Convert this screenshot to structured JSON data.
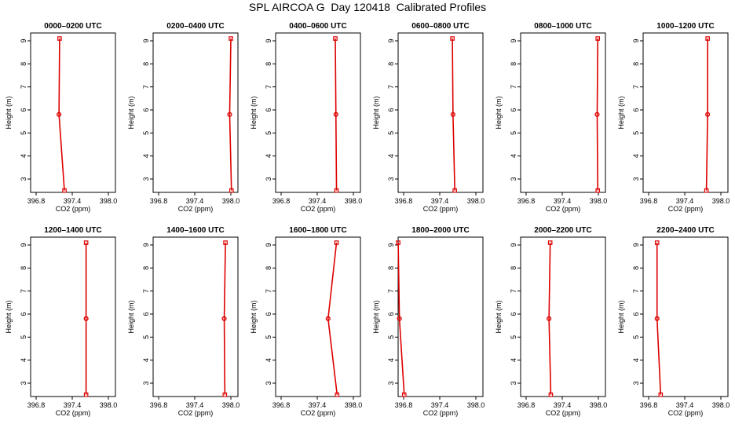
{
  "title": "SPL AIRCOA G  Day 120418  Calibrated Profiles",
  "chart_data": [
    {
      "type": "line",
      "title": "0000–0200 UTC",
      "xlabel": "CO2 (ppm)",
      "ylabel": "Height (m)",
      "x_ticks": [
        "396.8",
        "397.4",
        "398.0"
      ],
      "y_ticks": [
        "3",
        "4",
        "5",
        "6",
        "7",
        "8",
        "9"
      ],
      "xlim": [
        396.6,
        398.1
      ],
      "ylim": [
        2.3,
        9.3
      ],
      "grid": false,
      "heights": [
        2.5,
        5.8,
        9.1
      ],
      "co2": [
        397.27,
        397.18,
        397.19
      ]
    },
    {
      "type": "line",
      "title": "0200–0400 UTC",
      "xlabel": "CO2 (ppm)",
      "ylabel": "Height (m)",
      "x_ticks": [
        "396.8",
        "397.4",
        "398.0"
      ],
      "y_ticks": [
        "3",
        "4",
        "5",
        "6",
        "7",
        "8",
        "9"
      ],
      "xlim": [
        396.6,
        398.1
      ],
      "ylim": [
        2.3,
        9.3
      ],
      "grid": false,
      "heights": [
        2.5,
        5.8,
        9.1
      ],
      "co2": [
        398.01,
        397.98,
        398.0
      ]
    },
    {
      "type": "line",
      "title": "0400–0600 UTC",
      "xlabel": "CO2 (ppm)",
      "ylabel": "Height (m)",
      "x_ticks": [
        "396.8",
        "397.4",
        "398.0"
      ],
      "y_ticks": [
        "3",
        "4",
        "5",
        "6",
        "7",
        "8",
        "9"
      ],
      "xlim": [
        396.6,
        398.1
      ],
      "ylim": [
        2.3,
        9.3
      ],
      "grid": false,
      "heights": [
        2.5,
        5.8,
        9.1
      ],
      "co2": [
        397.72,
        397.71,
        397.7
      ]
    },
    {
      "type": "line",
      "title": "0600–0800 UTC",
      "xlabel": "CO2 (ppm)",
      "ylabel": "Height (m)",
      "x_ticks": [
        "396.8",
        "397.4",
        "398.0"
      ],
      "y_ticks": [
        "3",
        "4",
        "5",
        "6",
        "7",
        "8",
        "9"
      ],
      "xlim": [
        396.6,
        398.1
      ],
      "ylim": [
        2.3,
        9.3
      ],
      "grid": false,
      "heights": [
        2.5,
        5.8,
        9.1
      ],
      "co2": [
        397.65,
        397.62,
        397.61
      ]
    },
    {
      "type": "line",
      "title": "0800–1000 UTC",
      "xlabel": "CO2 (ppm)",
      "ylabel": "Height (m)",
      "x_ticks": [
        "396.8",
        "397.4",
        "398.0"
      ],
      "y_ticks": [
        "3",
        "4",
        "5",
        "6",
        "7",
        "8",
        "9"
      ],
      "xlim": [
        396.6,
        398.1
      ],
      "ylim": [
        2.3,
        9.3
      ],
      "grid": false,
      "heights": [
        2.5,
        5.8,
        9.1
      ],
      "co2": [
        397.99,
        397.98,
        397.99
      ]
    },
    {
      "type": "line",
      "title": "1000–1200 UTC",
      "xlabel": "CO2 (ppm)",
      "ylabel": "Height (m)",
      "x_ticks": [
        "396.8",
        "397.4",
        "398.0"
      ],
      "y_ticks": [
        "3",
        "4",
        "5",
        "6",
        "7",
        "8",
        "9"
      ],
      "xlim": [
        396.6,
        398.1
      ],
      "ylim": [
        2.3,
        9.3
      ],
      "grid": false,
      "heights": [
        2.5,
        5.8,
        9.1
      ],
      "co2": [
        397.76,
        397.78,
        397.78
      ]
    },
    {
      "type": "line",
      "title": "1200–1400 UTC",
      "xlabel": "CO2 (ppm)",
      "ylabel": "Height (m)",
      "x_ticks": [
        "396.8",
        "397.4",
        "398.0"
      ],
      "y_ticks": [
        "3",
        "4",
        "5",
        "6",
        "7",
        "8",
        "9"
      ],
      "xlim": [
        396.6,
        398.1
      ],
      "ylim": [
        2.3,
        9.3
      ],
      "grid": false,
      "heights": [
        2.5,
        5.8,
        9.1
      ],
      "co2": [
        397.63,
        397.63,
        397.63
      ]
    },
    {
      "type": "line",
      "title": "1400–1600 UTC",
      "xlabel": "CO2 (ppm)",
      "ylabel": "Height (m)",
      "x_ticks": [
        "396.8",
        "397.4",
        "398.0"
      ],
      "y_ticks": [
        "3",
        "4",
        "5",
        "6",
        "7",
        "8",
        "9"
      ],
      "xlim": [
        396.6,
        398.1
      ],
      "ylim": [
        2.3,
        9.3
      ],
      "grid": false,
      "heights": [
        2.5,
        5.8,
        9.1
      ],
      "co2": [
        397.9,
        397.89,
        397.91
      ]
    },
    {
      "type": "line",
      "title": "1600–1800 UTC",
      "xlabel": "CO2 (ppm)",
      "ylabel": "Height (m)",
      "x_ticks": [
        "396.8",
        "397.4",
        "398.0"
      ],
      "y_ticks": [
        "3",
        "4",
        "5",
        "6",
        "7",
        "8",
        "9"
      ],
      "xlim": [
        396.6,
        398.1
      ],
      "ylim": [
        2.3,
        9.3
      ],
      "grid": false,
      "heights": [
        2.5,
        5.8,
        9.1
      ],
      "co2": [
        397.73,
        397.58,
        397.72
      ]
    },
    {
      "type": "line",
      "title": "1800–2000 UTC",
      "xlabel": "CO2 (ppm)",
      "ylabel": "Height (m)",
      "x_ticks": [
        "396.8",
        "397.4",
        "398.0"
      ],
      "y_ticks": [
        "3",
        "4",
        "5",
        "6",
        "7",
        "8",
        "9"
      ],
      "xlim": [
        396.6,
        398.1
      ],
      "ylim": [
        2.3,
        9.3
      ],
      "grid": false,
      "heights": [
        2.5,
        5.8,
        9.1
      ],
      "co2": [
        396.81,
        396.73,
        396.71
      ]
    },
    {
      "type": "line",
      "title": "2000–2200 UTC",
      "xlabel": "CO2 (ppm)",
      "ylabel": "Height (m)",
      "x_ticks": [
        "396.8",
        "397.4",
        "398.0"
      ],
      "y_ticks": [
        "3",
        "4",
        "5",
        "6",
        "7",
        "8",
        "9"
      ],
      "xlim": [
        396.6,
        398.1
      ],
      "ylim": [
        2.3,
        9.3
      ],
      "grid": false,
      "heights": [
        2.5,
        5.8,
        9.1
      ],
      "co2": [
        397.21,
        397.18,
        397.2
      ]
    },
    {
      "type": "line",
      "title": "2200–2400 UTC",
      "xlabel": "CO2 (ppm)",
      "ylabel": "Height (m)",
      "x_ticks": [
        "396.8",
        "397.4",
        "398.0"
      ],
      "y_ticks": [
        "3",
        "4",
        "5",
        "6",
        "7",
        "8",
        "9"
      ],
      "xlim": [
        396.6,
        398.1
      ],
      "ylim": [
        2.3,
        9.3
      ],
      "grid": false,
      "heights": [
        2.5,
        5.8,
        9.1
      ],
      "co2": [
        397.0,
        396.94,
        396.94
      ]
    }
  ],
  "colors": {
    "series": "#dd0000",
    "axis": "#000000"
  }
}
